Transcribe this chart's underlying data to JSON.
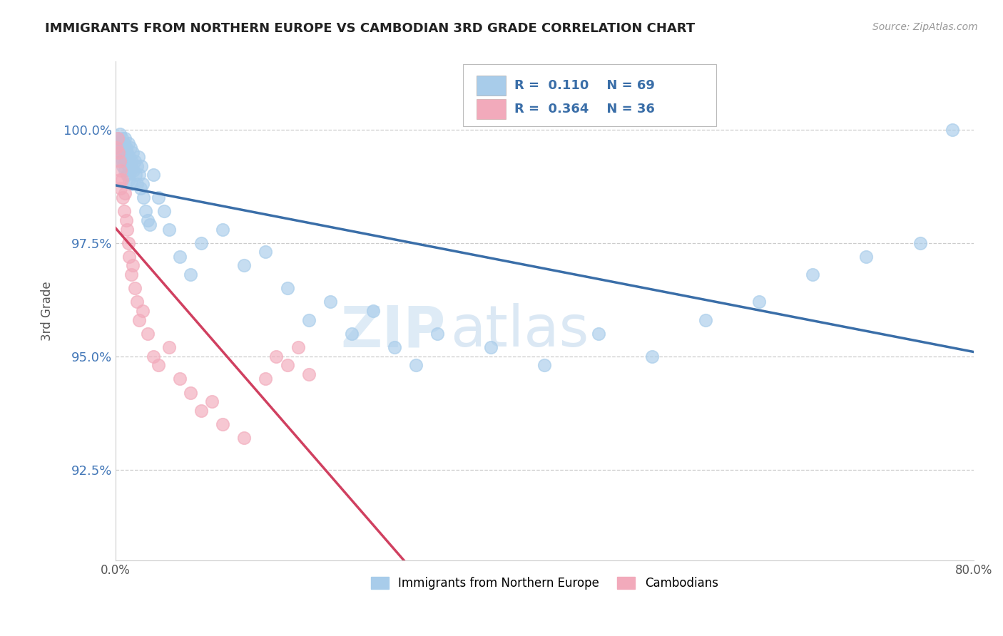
{
  "title": "IMMIGRANTS FROM NORTHERN EUROPE VS CAMBODIAN 3RD GRADE CORRELATION CHART",
  "source": "Source: ZipAtlas.com",
  "ylabel": "3rd Grade",
  "xlim": [
    0.0,
    80.0
  ],
  "ylim": [
    90.5,
    101.5
  ],
  "yticks": [
    92.5,
    95.0,
    97.5,
    100.0
  ],
  "ytick_labels": [
    "92.5%",
    "95.0%",
    "97.5%",
    "100.0%"
  ],
  "legend1_R": "0.110",
  "legend1_N": "69",
  "legend2_R": "0.364",
  "legend2_N": "36",
  "legend1_label": "Immigrants from Northern Europe",
  "legend2_label": "Cambodians",
  "blue_color": "#A8CCEA",
  "pink_color": "#F2AABB",
  "blue_line_color": "#3A6EA8",
  "pink_line_color": "#D04060",
  "watermark_zip": "ZIP",
  "watermark_atlas": "atlas",
  "blue_x": [
    0.2,
    0.3,
    0.4,
    0.4,
    0.5,
    0.5,
    0.6,
    0.6,
    0.7,
    0.7,
    0.8,
    0.8,
    0.9,
    0.9,
    1.0,
    1.0,
    1.1,
    1.1,
    1.2,
    1.2,
    1.3,
    1.3,
    1.4,
    1.4,
    1.5,
    1.5,
    1.6,
    1.7,
    1.8,
    1.9,
    2.0,
    2.0,
    2.1,
    2.2,
    2.3,
    2.4,
    2.5,
    2.6,
    2.8,
    3.0,
    3.2,
    3.5,
    4.0,
    4.5,
    5.0,
    6.0,
    7.0,
    8.0,
    10.0,
    12.0,
    14.0,
    16.0,
    18.0,
    20.0,
    22.0,
    24.0,
    26.0,
    28.0,
    30.0,
    35.0,
    40.0,
    45.0,
    50.0,
    55.0,
    60.0,
    65.0,
    70.0,
    75.0,
    78.0
  ],
  "blue_y": [
    99.8,
    99.6,
    99.9,
    99.5,
    99.7,
    99.4,
    99.8,
    99.3,
    99.6,
    99.2,
    99.7,
    99.4,
    99.8,
    99.1,
    99.6,
    99.3,
    99.5,
    99.0,
    99.7,
    99.2,
    99.4,
    98.9,
    99.6,
    99.1,
    99.3,
    98.8,
    99.5,
    99.1,
    99.3,
    99.0,
    99.2,
    98.8,
    99.4,
    99.0,
    98.7,
    99.2,
    98.8,
    98.5,
    98.2,
    98.0,
    97.9,
    99.0,
    98.5,
    98.2,
    97.8,
    97.2,
    96.8,
    97.5,
    97.8,
    97.0,
    97.3,
    96.5,
    95.8,
    96.2,
    95.5,
    96.0,
    95.2,
    94.8,
    95.5,
    95.2,
    94.8,
    95.5,
    95.0,
    95.8,
    96.2,
    96.8,
    97.2,
    97.5,
    100.0
  ],
  "pink_x": [
    0.1,
    0.2,
    0.3,
    0.4,
    0.4,
    0.5,
    0.5,
    0.6,
    0.7,
    0.8,
    0.9,
    1.0,
    1.1,
    1.2,
    1.3,
    1.5,
    1.6,
    1.8,
    2.0,
    2.2,
    2.5,
    3.0,
    3.5,
    4.0,
    5.0,
    6.0,
    7.0,
    8.0,
    9.0,
    10.0,
    12.0,
    14.0,
    15.0,
    16.0,
    17.0,
    18.0
  ],
  "pink_y": [
    99.6,
    99.8,
    99.5,
    99.3,
    98.9,
    99.1,
    98.7,
    98.9,
    98.5,
    98.2,
    98.6,
    98.0,
    97.8,
    97.5,
    97.2,
    96.8,
    97.0,
    96.5,
    96.2,
    95.8,
    96.0,
    95.5,
    95.0,
    94.8,
    95.2,
    94.5,
    94.2,
    93.8,
    94.0,
    93.5,
    93.2,
    94.5,
    95.0,
    94.8,
    95.2,
    94.6
  ]
}
